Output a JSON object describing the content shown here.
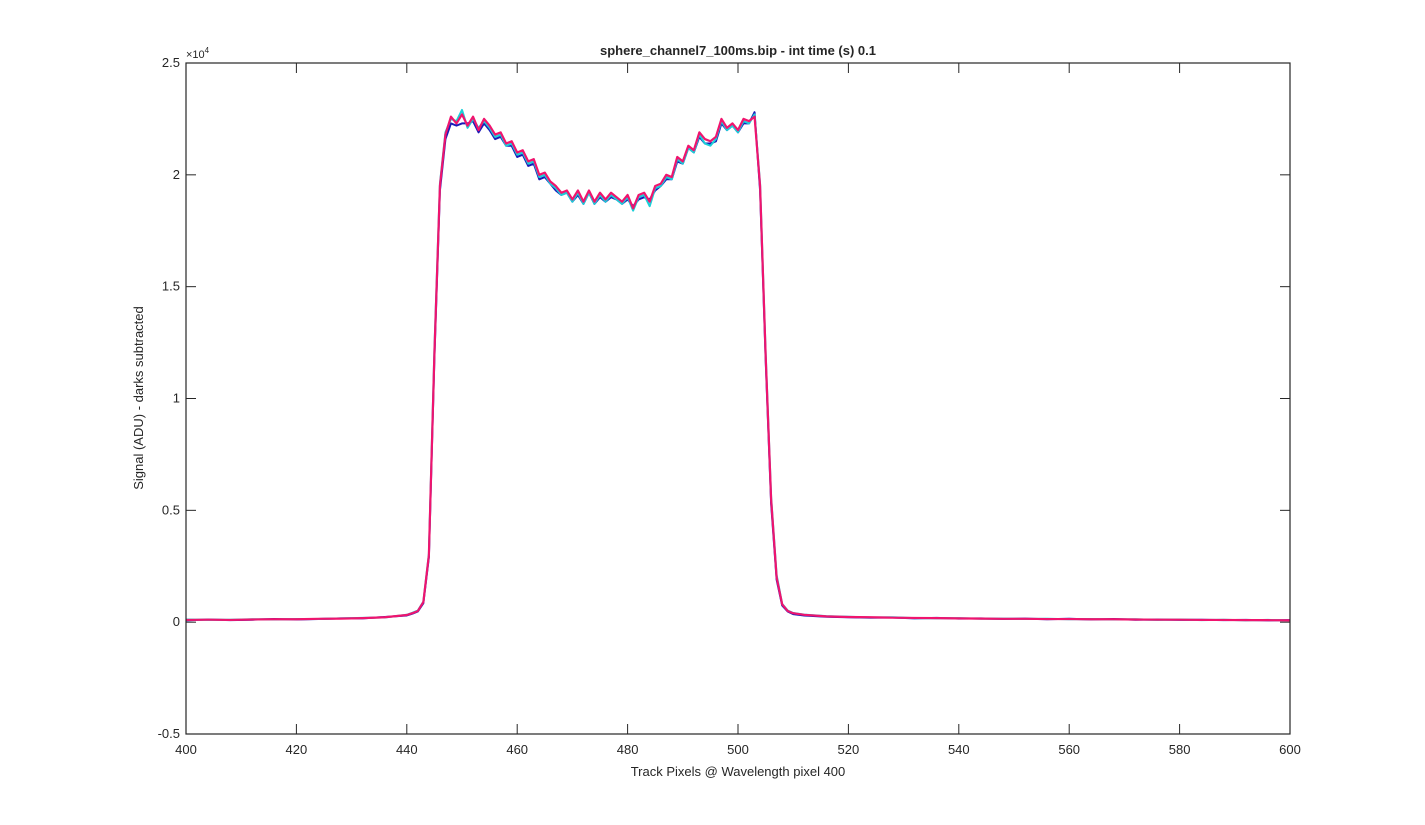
{
  "chart_data": {
    "type": "line",
    "title": "sphere_channel7_100ms.bip - int time (s) 0.1",
    "x_label": "Track Pixels @ Wavelength pixel 400",
    "y_label": "Signal (ADU) - darks subtracted",
    "y_exponent": {
      "base": "×10",
      "power": "4"
    },
    "xlim": [
      400,
      600
    ],
    "ylim": [
      -5000,
      25000
    ],
    "xticks": [
      400,
      420,
      440,
      460,
      480,
      500,
      520,
      540,
      560,
      580,
      600
    ],
    "yticks": [
      {
        "value": -5000,
        "label": "-0.5"
      },
      {
        "value": 0,
        "label": "0"
      },
      {
        "value": 5000,
        "label": "0.5"
      },
      {
        "value": 10000,
        "label": "1"
      },
      {
        "value": 15000,
        "label": "1.5"
      },
      {
        "value": 20000,
        "label": "2"
      },
      {
        "value": 25000,
        "label": "2.5"
      }
    ],
    "grid": false,
    "x": [
      400,
      404,
      408,
      412,
      416,
      420,
      424,
      428,
      432,
      436,
      440,
      441,
      442,
      443,
      444,
      445,
      446,
      447,
      448,
      449,
      450,
      451,
      452,
      453,
      454,
      455,
      456,
      457,
      458,
      459,
      460,
      461,
      462,
      463,
      464,
      465,
      466,
      467,
      468,
      469,
      470,
      471,
      472,
      473,
      474,
      475,
      476,
      477,
      478,
      479,
      480,
      481,
      482,
      483,
      484,
      485,
      486,
      487,
      488,
      489,
      490,
      491,
      492,
      493,
      494,
      495,
      496,
      497,
      498,
      499,
      500,
      501,
      502,
      503,
      504,
      505,
      506,
      507,
      508,
      509,
      510,
      512,
      516,
      520,
      524,
      528,
      532,
      536,
      540,
      544,
      548,
      552,
      556,
      560,
      564,
      568,
      572,
      576,
      580,
      584,
      588,
      592,
      596,
      600
    ],
    "series": [
      {
        "color": "#1a1ab8",
        "values": [
          80,
          120,
          90,
          110,
          140,
          120,
          140,
          170,
          170,
          230,
          300,
          380,
          480,
          850,
          2900,
          11800,
          19300,
          21600,
          22300,
          22200,
          22300,
          22300,
          22400,
          21900,
          22300,
          22000,
          21600,
          21700,
          21300,
          21300,
          20800,
          20900,
          20400,
          20500,
          19800,
          19900,
          19600,
          19300,
          19100,
          19200,
          18800,
          19100,
          18700,
          19200,
          18700,
          19000,
          18800,
          19000,
          18900,
          18700,
          18900,
          18600,
          18900,
          19000,
          18900,
          19300,
          19500,
          19800,
          19800,
          20600,
          20500,
          21200,
          21000,
          21700,
          21400,
          21400,
          21500,
          22300,
          22000,
          22200,
          21900,
          22300,
          22300,
          22800,
          19300,
          11800,
          5300,
          1900,
          750,
          480,
          360,
          300,
          240,
          220,
          200,
          210,
          170,
          190,
          160,
          170,
          140,
          160,
          130,
          150,
          120,
          140,
          110,
          120,
          100,
          110,
          90,
          100,
          80,
          90
        ]
      },
      {
        "color": "#1ad0d8",
        "values": [
          120,
          100,
          110,
          130,
          120,
          140,
          140,
          170,
          190,
          210,
          330,
          420,
          520,
          920,
          3050,
          12200,
          19600,
          21900,
          22500,
          22400,
          22900,
          22100,
          22500,
          22100,
          22400,
          22100,
          21700,
          21800,
          21300,
          21400,
          20900,
          21000,
          20500,
          20600,
          19900,
          20000,
          19600,
          19400,
          19100,
          19200,
          18800,
          19200,
          18700,
          19200,
          18700,
          19100,
          18800,
          19100,
          18900,
          18700,
          19000,
          18400,
          19000,
          19100,
          18600,
          19400,
          19500,
          19900,
          19800,
          20700,
          20500,
          21200,
          21000,
          21800,
          21400,
          21300,
          21600,
          22400,
          22000,
          22200,
          21900,
          22400,
          22300,
          22700,
          19600,
          12100,
          5600,
          2100,
          820,
          520,
          410,
          340,
          270,
          240,
          210,
          220,
          180,
          170,
          180,
          150,
          160,
          140,
          150,
          130,
          140,
          120,
          130,
          100,
          120,
          90,
          110,
          80,
          100,
          70
        ]
      },
      {
        "color": "#f0146e",
        "values": [
          100,
          110,
          100,
          120,
          130,
          130,
          150,
          160,
          180,
          220,
          320,
          400,
          500,
          900,
          3000,
          12000,
          19500,
          21800,
          22600,
          22300,
          22700,
          22200,
          22600,
          22000,
          22500,
          22200,
          21800,
          21900,
          21400,
          21500,
          21000,
          21100,
          20600,
          20700,
          20000,
          20100,
          19700,
          19500,
          19200,
          19300,
          18900,
          19300,
          18800,
          19300,
          18800,
          19200,
          18900,
          19200,
          19000,
          18800,
          19100,
          18500,
          19100,
          19200,
          18800,
          19500,
          19600,
          20000,
          19900,
          20800,
          20600,
          21300,
          21100,
          21900,
          21600,
          21500,
          21700,
          22500,
          22100,
          22300,
          22000,
          22500,
          22400,
          22600,
          19500,
          12000,
          5500,
          2000,
          800,
          500,
          400,
          330,
          260,
          230,
          220,
          200,
          190,
          180,
          170,
          160,
          150,
          150,
          140,
          140,
          130,
          130,
          120,
          110,
          110,
          100,
          100,
          90,
          90,
          80
        ]
      }
    ]
  }
}
